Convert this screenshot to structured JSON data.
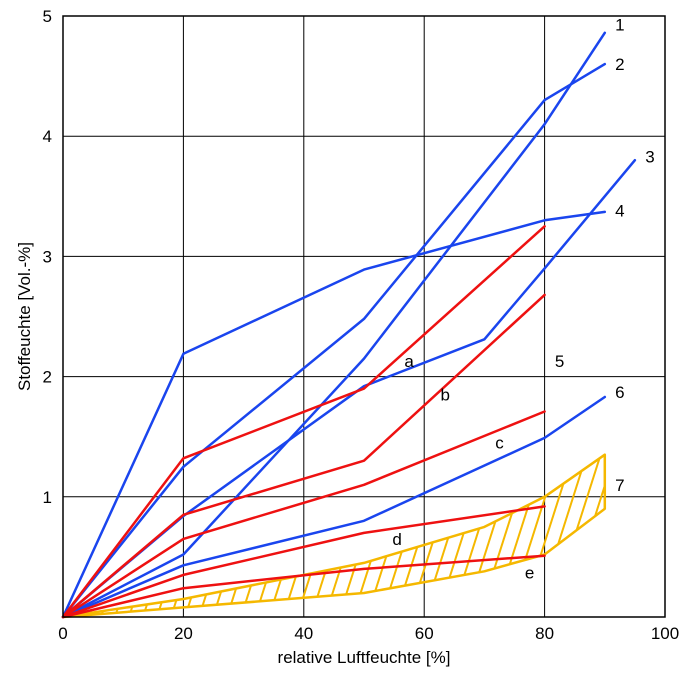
{
  "chart_data": {
    "type": "line",
    "xlabel": "relative Luftfeuchte [%]",
    "ylabel": "Stoffeuchte [Vol.-%]",
    "xlim": [
      0,
      100
    ],
    "ylim": [
      0,
      5
    ],
    "x_ticks": [
      "0",
      "20",
      "40",
      "60",
      "80",
      "100"
    ],
    "y_ticks": [
      "1",
      "2",
      "3",
      "4",
      "5"
    ],
    "grid": true,
    "colors": {
      "blue": "#1a45ee",
      "red": "#ee1111",
      "orange": "#f5b800"
    },
    "series": [
      {
        "name": "1",
        "color": "blue",
        "x": [
          0,
          20,
          50,
          80,
          90
        ],
        "y": [
          0,
          0.52,
          2.15,
          4.1,
          4.86
        ]
      },
      {
        "name": "2",
        "color": "blue",
        "x": [
          0,
          20,
          50,
          80,
          90
        ],
        "y": [
          0,
          1.25,
          2.48,
          4.3,
          4.6
        ]
      },
      {
        "name": "3",
        "color": "blue",
        "x": [
          0,
          20,
          50,
          70,
          80,
          95
        ],
        "y": [
          0,
          0.84,
          1.92,
          2.31,
          2.9,
          3.8
        ]
      },
      {
        "name": "4",
        "color": "blue",
        "x": [
          0,
          20,
          50,
          80,
          90
        ],
        "y": [
          0,
          2.19,
          2.89,
          3.3,
          3.37
        ]
      },
      {
        "name": "5",
        "color": "blue",
        "x": [],
        "y": []
      },
      {
        "name": "6",
        "color": "blue",
        "x": [
          0,
          20,
          50,
          80,
          90
        ],
        "y": [
          0,
          0.43,
          0.8,
          1.49,
          1.83
        ]
      },
      {
        "name": "a",
        "color": "red",
        "x": [
          0,
          20,
          50,
          80
        ],
        "y": [
          0,
          1.32,
          1.9,
          3.25
        ]
      },
      {
        "name": "b",
        "color": "red",
        "x": [
          0,
          20,
          50,
          80
        ],
        "y": [
          0,
          0.85,
          1.3,
          2.68
        ]
      },
      {
        "name": "c",
        "color": "red",
        "x": [
          0,
          20,
          50,
          80
        ],
        "y": [
          0,
          0.65,
          1.1,
          1.71
        ]
      },
      {
        "name": "d",
        "color": "red",
        "x": [
          0,
          20,
          50,
          80
        ],
        "y": [
          0,
          0.35,
          0.7,
          0.92
        ]
      },
      {
        "name": "e",
        "color": "red",
        "x": [
          0,
          20,
          50,
          80
        ],
        "y": [
          0,
          0.24,
          0.4,
          0.51
        ]
      }
    ],
    "band": {
      "name": "7",
      "color": "orange",
      "upper": {
        "x": [
          0,
          20,
          50,
          70,
          80,
          90
        ],
        "y": [
          0,
          0.15,
          0.45,
          0.75,
          1.0,
          1.35
        ]
      },
      "lower": {
        "x": [
          0,
          20,
          50,
          70,
          80,
          90
        ],
        "y": [
          0,
          0.08,
          0.2,
          0.38,
          0.52,
          0.9
        ]
      }
    },
    "labels": [
      {
        "text": "1",
        "x": 92.5,
        "y": 4.93
      },
      {
        "text": "2",
        "x": 92.5,
        "y": 4.6
      },
      {
        "text": "3",
        "x": 97.5,
        "y": 3.83
      },
      {
        "text": "4",
        "x": 92.5,
        "y": 3.38
      },
      {
        "text": "5",
        "x": 82.5,
        "y": 2.13
      },
      {
        "text": "6",
        "x": 92.5,
        "y": 1.87
      },
      {
        "text": "7",
        "x": 92.5,
        "y": 1.1
      },
      {
        "text": "a",
        "x": 57.5,
        "y": 2.13
      },
      {
        "text": "b",
        "x": 63.5,
        "y": 1.85
      },
      {
        "text": "c",
        "x": 72.5,
        "y": 1.45
      },
      {
        "text": "d",
        "x": 55.5,
        "y": 0.65
      },
      {
        "text": "e",
        "x": 77.5,
        "y": 0.37
      }
    ]
  }
}
